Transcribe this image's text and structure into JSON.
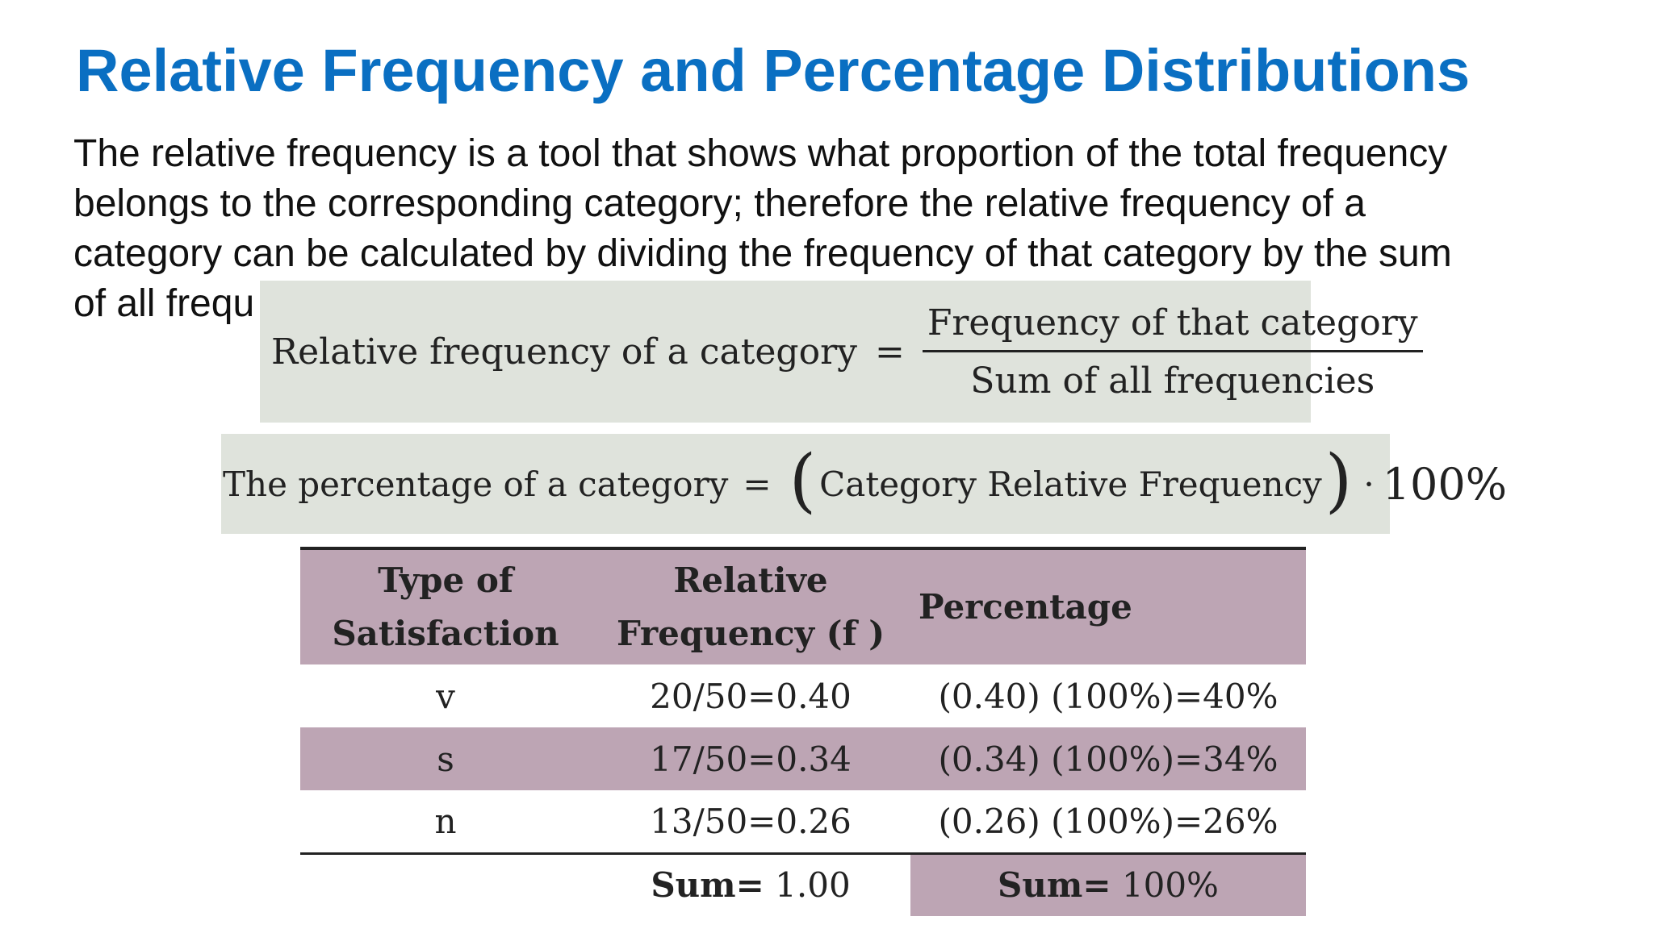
{
  "slide": {
    "title": "Relative Frequency and Percentage Distributions",
    "paragraph_lines": [
      "The relative frequency is a tool that shows what proportion of the total frequency",
      "belongs to the corresponding category; therefore the relative frequency of a",
      "category can be calculated by dividing the frequency of that category by the sum",
      "of all frequ"
    ]
  },
  "formula1": {
    "lhs": "Relative frequency of a category",
    "equals": "=",
    "numerator": "Frequency of that category",
    "denominator": "Sum of all frequencies"
  },
  "formula2": {
    "lhs": "The percentage of a category",
    "equals": "=",
    "open_paren": "(",
    "inner": "Category Relative Frequency",
    "close_paren": ")",
    "dot": "·",
    "hundred": "100%"
  },
  "table": {
    "headers": {
      "type_line1": "Type of",
      "type_line2": "Satisfaction",
      "rel_line1": "Relative",
      "rel_line2": "Frequency (f )",
      "pct": "Percentage"
    },
    "rows": [
      {
        "type": "v",
        "relative": "20/50=0.40",
        "percentage": "(0.40) (100%)=40%"
      },
      {
        "type": "s",
        "relative": "17/50=0.34",
        "percentage": "(0.34) (100%)=34%"
      },
      {
        "type": "n",
        "relative": "13/50=0.26",
        "percentage": "(0.26) (100%)=26%"
      }
    ],
    "footer": {
      "sum_label": "Sum=",
      "sum_relative": "1.00",
      "sum_pct_label": "Sum=",
      "sum_pct": "100%"
    }
  },
  "colors": {
    "title": "#0a6fc2",
    "formula_background": "#dfe3dc",
    "table_shading": "#bda5b4"
  }
}
